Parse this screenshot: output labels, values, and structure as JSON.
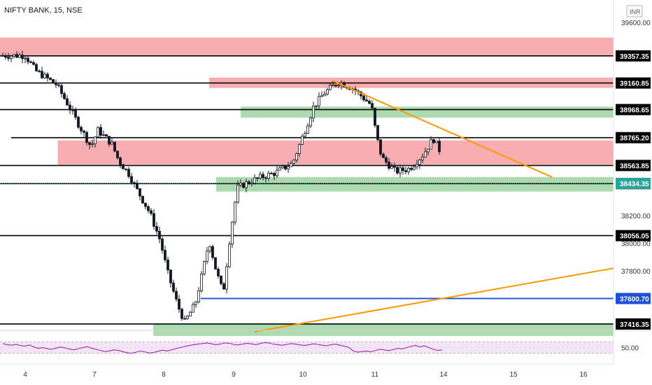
{
  "header": {
    "title": "NIFTY BANK, 15, NSE",
    "currency": "INR"
  },
  "colors": {
    "candle": "#131722",
    "resistance_zone": "#f7a4a9",
    "support_zone": "#a5d6a7",
    "horizontal_line": "#000000",
    "trendline": "#ff9800",
    "blue_line": "#1e4fd8",
    "rsi_line": "#9c27b0",
    "rsi_band": "#f3e5f5",
    "current_price": "#26a69a"
  },
  "chart_data": {
    "type": "candlestick",
    "x_labels": [
      "4",
      "7",
      "8",
      "9",
      "10",
      "11",
      "14",
      "15",
      "16"
    ],
    "y_ticks": [
      "39600.00",
      "38200.00",
      "38000.00",
      "37800.00"
    ],
    "ylim": [
      37380,
      39620
    ],
    "price_levels": [
      {
        "name": "level-39357",
        "label": "39357.35",
        "value": 39357.35
      },
      {
        "name": "level-39160",
        "label": "39160.85",
        "value": 39160.85
      },
      {
        "name": "level-38968",
        "label": "38968.65",
        "value": 38968.65
      },
      {
        "name": "level-38765",
        "label": "38765.20",
        "value": 38765.2
      },
      {
        "name": "level-38563",
        "label": "38563.85",
        "value": 38563.85
      },
      {
        "name": "level-38432",
        "label": "38432.60",
        "value": 38432.6
      },
      {
        "name": "level-38056",
        "label": "38056.05",
        "value": 38056.05
      },
      {
        "name": "level-37416",
        "label": "37416.35",
        "value": 37416.35
      }
    ],
    "current_price": {
      "label": "38434.35",
      "value": 38434.35
    },
    "blue_level": {
      "label": "37600.70",
      "value": 37600.7
    },
    "zones": [
      {
        "type": "resistance",
        "from_day": 0,
        "to_day": 8.7,
        "low": 39357,
        "high": 39490
      },
      {
        "type": "resistance",
        "from_day": 2.65,
        "to_day": 8.7,
        "low": 39125,
        "high": 39200
      },
      {
        "type": "support",
        "from_day": 3.1,
        "to_day": 8.7,
        "low": 38910,
        "high": 38990
      },
      {
        "type": "resistance",
        "from_day": 0.47,
        "to_day": 8.7,
        "low": 38570,
        "high": 38745
      },
      {
        "type": "support",
        "from_day": 2.75,
        "to_day": 8.7,
        "low": 38375,
        "high": 38480
      },
      {
        "type": "support",
        "from_day": 1.85,
        "to_day": 8.7,
        "low": 37330,
        "high": 37420
      }
    ],
    "trendlines": [
      {
        "name": "descending-trendline",
        "from": [
          4.4,
          39180
        ],
        "to": [
          7.55,
          38480
        ]
      },
      {
        "name": "ascending-trendline",
        "from": [
          3.3,
          37360
        ],
        "to": [
          8.7,
          37820
        ]
      }
    ],
    "rsi": {
      "ticks": [
        "50.00"
      ],
      "upper": 70,
      "lower": 30,
      "mid": 50,
      "values": [
        64,
        60,
        58,
        61,
        57,
        55,
        59,
        52,
        47,
        50,
        46,
        44,
        48,
        52,
        49,
        45,
        42,
        46,
        50,
        53,
        48,
        44,
        40,
        36,
        38,
        42,
        40,
        36,
        32,
        30,
        34,
        38,
        35,
        31,
        33,
        37,
        41,
        38,
        42,
        46,
        50,
        54,
        57,
        60,
        62,
        64,
        66,
        63,
        60,
        62,
        66,
        65,
        61,
        59,
        62,
        65,
        63,
        60,
        64,
        67,
        66,
        62,
        60,
        58,
        61,
        64,
        62,
        59,
        57,
        60,
        63,
        61,
        58,
        56,
        60,
        62,
        58,
        55,
        50,
        38,
        34,
        36,
        38,
        35,
        40,
        44,
        42,
        39,
        43,
        47,
        45,
        50,
        54,
        58,
        52,
        56,
        50,
        44,
        40,
        42
      ]
    }
  }
}
